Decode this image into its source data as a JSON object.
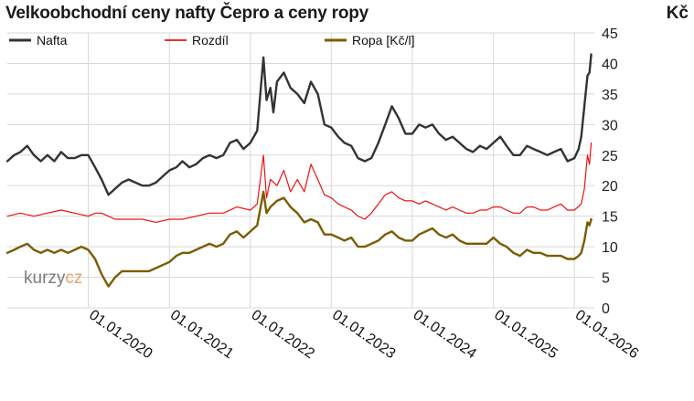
{
  "title": "Velkoobchodní ceny nafty Čepro a ceny ropy",
  "unit": "Kč",
  "watermark": {
    "main": "kurzy",
    "accent": "cz"
  },
  "colors": {
    "nafta": "#333333",
    "rozdil": "#ee1111",
    "ropa": "#7a5c00",
    "grid": "#d8d8d8",
    "background": "#ffffff"
  },
  "chart_data": {
    "type": "line",
    "title": "Velkoobchodní ceny nafty Čepro a ceny ropy",
    "ylabel": "Kč",
    "ylim": [
      0,
      45
    ],
    "yticks": [
      "0",
      "5",
      "10",
      "15",
      "20",
      "25",
      "30",
      "35",
      "40",
      "45"
    ],
    "xlim": [
      "2019-01-01",
      "2026-04-01"
    ],
    "xticks": [
      "01.01.2020",
      "01.01.2021",
      "01.01.2022",
      "01.01.2023",
      "01.01.2024",
      "01.01.2025",
      "01.01.2026"
    ],
    "grid": true,
    "legend": "top",
    "y_axis_side": "right",
    "series": [
      {
        "name": "Nafta",
        "points": [
          [
            "2019-01-01",
            24.0
          ],
          [
            "2019-02-01",
            25.0
          ],
          [
            "2019-03-01",
            25.5
          ],
          [
            "2019-04-01",
            26.5
          ],
          [
            "2019-05-01",
            25.0
          ],
          [
            "2019-06-01",
            24.0
          ],
          [
            "2019-07-01",
            25.0
          ],
          [
            "2019-08-01",
            24.0
          ],
          [
            "2019-09-01",
            25.5
          ],
          [
            "2019-10-01",
            24.5
          ],
          [
            "2019-11-01",
            24.5
          ],
          [
            "2019-12-01",
            25.0
          ],
          [
            "2020-01-01",
            25.0
          ],
          [
            "2020-02-01",
            23.0
          ],
          [
            "2020-03-01",
            21.0
          ],
          [
            "2020-04-01",
            18.5
          ],
          [
            "2020-05-01",
            19.5
          ],
          [
            "2020-06-01",
            20.5
          ],
          [
            "2020-07-01",
            21.0
          ],
          [
            "2020-08-01",
            20.5
          ],
          [
            "2020-09-01",
            20.0
          ],
          [
            "2020-10-01",
            20.0
          ],
          [
            "2020-11-01",
            20.5
          ],
          [
            "2020-12-01",
            21.5
          ],
          [
            "2021-01-01",
            22.5
          ],
          [
            "2021-02-01",
            23.0
          ],
          [
            "2021-03-01",
            24.0
          ],
          [
            "2021-04-01",
            23.0
          ],
          [
            "2021-05-01",
            23.5
          ],
          [
            "2021-06-01",
            24.5
          ],
          [
            "2021-07-01",
            25.0
          ],
          [
            "2021-08-01",
            24.5
          ],
          [
            "2021-09-01",
            25.0
          ],
          [
            "2021-10-01",
            27.0
          ],
          [
            "2021-11-01",
            27.5
          ],
          [
            "2021-12-01",
            26.0
          ],
          [
            "2022-01-01",
            27.0
          ],
          [
            "2022-02-01",
            29.0
          ],
          [
            "2022-03-01",
            41.0
          ],
          [
            "2022-03-15",
            34.0
          ],
          [
            "2022-04-01",
            36.0
          ],
          [
            "2022-04-15",
            32.0
          ],
          [
            "2022-05-01",
            37.0
          ],
          [
            "2022-06-01",
            38.5
          ],
          [
            "2022-07-01",
            36.0
          ],
          [
            "2022-08-01",
            35.0
          ],
          [
            "2022-09-01",
            33.5
          ],
          [
            "2022-10-01",
            37.0
          ],
          [
            "2022-11-01",
            35.0
          ],
          [
            "2022-12-01",
            30.0
          ],
          [
            "2023-01-01",
            29.5
          ],
          [
            "2023-02-01",
            28.0
          ],
          [
            "2023-03-01",
            27.0
          ],
          [
            "2023-04-01",
            26.5
          ],
          [
            "2023-05-01",
            24.5
          ],
          [
            "2023-06-01",
            24.0
          ],
          [
            "2023-07-01",
            24.5
          ],
          [
            "2023-08-01",
            27.0
          ],
          [
            "2023-09-01",
            30.0
          ],
          [
            "2023-10-01",
            33.0
          ],
          [
            "2023-11-01",
            31.0
          ],
          [
            "2023-12-01",
            28.5
          ],
          [
            "2024-01-01",
            28.5
          ],
          [
            "2024-02-01",
            30.0
          ],
          [
            "2024-03-01",
            29.5
          ],
          [
            "2024-04-01",
            30.0
          ],
          [
            "2024-05-01",
            28.5
          ],
          [
            "2024-06-01",
            27.5
          ],
          [
            "2024-07-01",
            28.0
          ],
          [
            "2024-08-01",
            27.0
          ],
          [
            "2024-09-01",
            26.0
          ],
          [
            "2024-10-01",
            25.5
          ],
          [
            "2024-11-01",
            26.5
          ],
          [
            "2024-12-01",
            26.0
          ],
          [
            "2025-01-01",
            27.0
          ],
          [
            "2025-02-01",
            28.0
          ],
          [
            "2025-03-01",
            26.5
          ],
          [
            "2025-04-01",
            25.0
          ],
          [
            "2025-05-01",
            25.0
          ],
          [
            "2025-06-01",
            26.5
          ],
          [
            "2025-07-01",
            26.0
          ],
          [
            "2025-08-01",
            25.5
          ],
          [
            "2025-09-01",
            25.0
          ],
          [
            "2025-10-01",
            25.5
          ],
          [
            "2025-11-01",
            26.0
          ],
          [
            "2025-12-01",
            24.0
          ],
          [
            "2026-01-01",
            24.5
          ],
          [
            "2026-01-20",
            26.0
          ],
          [
            "2026-02-01",
            28.0
          ],
          [
            "2026-02-15",
            33.0
          ],
          [
            "2026-03-01",
            38.0
          ],
          [
            "2026-03-10",
            38.5
          ],
          [
            "2026-03-18",
            41.5
          ]
        ]
      },
      {
        "name": "Rozdíl",
        "points": [
          [
            "2019-01-01",
            15.0
          ],
          [
            "2019-03-01",
            15.5
          ],
          [
            "2019-05-01",
            15.0
          ],
          [
            "2019-07-01",
            15.5
          ],
          [
            "2019-09-01",
            16.0
          ],
          [
            "2019-11-01",
            15.5
          ],
          [
            "2020-01-01",
            15.0
          ],
          [
            "2020-02-01",
            15.5
          ],
          [
            "2020-03-01",
            15.5
          ],
          [
            "2020-04-01",
            15.0
          ],
          [
            "2020-05-01",
            14.5
          ],
          [
            "2020-07-01",
            14.5
          ],
          [
            "2020-09-01",
            14.5
          ],
          [
            "2020-11-01",
            14.0
          ],
          [
            "2021-01-01",
            14.5
          ],
          [
            "2021-03-01",
            14.5
          ],
          [
            "2021-05-01",
            15.0
          ],
          [
            "2021-07-01",
            15.5
          ],
          [
            "2021-09-01",
            15.5
          ],
          [
            "2021-11-01",
            16.5
          ],
          [
            "2022-01-01",
            16.0
          ],
          [
            "2022-02-01",
            17.0
          ],
          [
            "2022-03-01",
            25.0
          ],
          [
            "2022-03-15",
            18.0
          ],
          [
            "2022-04-01",
            21.0
          ],
          [
            "2022-05-01",
            20.0
          ],
          [
            "2022-06-01",
            22.5
          ],
          [
            "2022-07-01",
            19.0
          ],
          [
            "2022-08-01",
            21.0
          ],
          [
            "2022-09-01",
            19.0
          ],
          [
            "2022-10-01",
            23.5
          ],
          [
            "2022-11-01",
            21.0
          ],
          [
            "2022-12-01",
            18.5
          ],
          [
            "2023-01-01",
            18.0
          ],
          [
            "2023-02-01",
            17.0
          ],
          [
            "2023-03-01",
            16.5
          ],
          [
            "2023-04-01",
            16.0
          ],
          [
            "2023-05-01",
            15.0
          ],
          [
            "2023-06-01",
            14.5
          ],
          [
            "2023-07-01",
            15.5
          ],
          [
            "2023-08-01",
            17.0
          ],
          [
            "2023-09-01",
            18.5
          ],
          [
            "2023-10-01",
            19.0
          ],
          [
            "2023-11-01",
            18.0
          ],
          [
            "2023-12-01",
            17.5
          ],
          [
            "2024-01-01",
            17.5
          ],
          [
            "2024-02-01",
            17.0
          ],
          [
            "2024-03-01",
            17.5
          ],
          [
            "2024-04-01",
            17.0
          ],
          [
            "2024-05-01",
            16.5
          ],
          [
            "2024-06-01",
            16.0
          ],
          [
            "2024-07-01",
            16.5
          ],
          [
            "2024-08-01",
            16.0
          ],
          [
            "2024-09-01",
            15.5
          ],
          [
            "2024-10-01",
            15.5
          ],
          [
            "2024-11-01",
            16.0
          ],
          [
            "2024-12-01",
            16.0
          ],
          [
            "2025-01-01",
            16.5
          ],
          [
            "2025-02-01",
            16.5
          ],
          [
            "2025-03-01",
            16.0
          ],
          [
            "2025-04-01",
            15.5
          ],
          [
            "2025-05-01",
            15.5
          ],
          [
            "2025-06-01",
            16.5
          ],
          [
            "2025-07-01",
            16.5
          ],
          [
            "2025-08-01",
            16.0
          ],
          [
            "2025-09-01",
            16.0
          ],
          [
            "2025-10-01",
            16.5
          ],
          [
            "2025-11-01",
            17.0
          ],
          [
            "2025-12-01",
            16.0
          ],
          [
            "2026-01-01",
            16.0
          ],
          [
            "2026-02-01",
            17.0
          ],
          [
            "2026-02-15",
            19.5
          ],
          [
            "2026-03-01",
            25.0
          ],
          [
            "2026-03-10",
            23.5
          ],
          [
            "2026-03-18",
            27.0
          ]
        ]
      },
      {
        "name": "Ropa [Kč/l]",
        "points": [
          [
            "2019-01-01",
            9.0
          ],
          [
            "2019-02-01",
            9.5
          ],
          [
            "2019-03-01",
            10.0
          ],
          [
            "2019-04-01",
            10.5
          ],
          [
            "2019-05-01",
            9.5
          ],
          [
            "2019-06-01",
            9.0
          ],
          [
            "2019-07-01",
            9.5
          ],
          [
            "2019-08-01",
            9.0
          ],
          [
            "2019-09-01",
            9.5
          ],
          [
            "2019-10-01",
            9.0
          ],
          [
            "2019-11-01",
            9.5
          ],
          [
            "2019-12-01",
            10.0
          ],
          [
            "2020-01-01",
            9.5
          ],
          [
            "2020-02-01",
            8.0
          ],
          [
            "2020-03-01",
            5.5
          ],
          [
            "2020-04-01",
            3.5
          ],
          [
            "2020-05-01",
            5.0
          ],
          [
            "2020-06-01",
            6.0
          ],
          [
            "2020-07-01",
            6.0
          ],
          [
            "2020-08-01",
            6.0
          ],
          [
            "2020-09-01",
            6.0
          ],
          [
            "2020-10-01",
            6.0
          ],
          [
            "2020-11-01",
            6.5
          ],
          [
            "2020-12-01",
            7.0
          ],
          [
            "2021-01-01",
            7.5
          ],
          [
            "2021-02-01",
            8.5
          ],
          [
            "2021-03-01",
            9.0
          ],
          [
            "2021-04-01",
            9.0
          ],
          [
            "2021-05-01",
            9.5
          ],
          [
            "2021-06-01",
            10.0
          ],
          [
            "2021-07-01",
            10.5
          ],
          [
            "2021-08-01",
            10.0
          ],
          [
            "2021-09-01",
            10.5
          ],
          [
            "2021-10-01",
            12.0
          ],
          [
            "2021-11-01",
            12.5
          ],
          [
            "2021-12-01",
            11.5
          ],
          [
            "2022-01-01",
            12.5
          ],
          [
            "2022-02-01",
            13.5
          ],
          [
            "2022-03-01",
            19.0
          ],
          [
            "2022-03-15",
            15.5
          ],
          [
            "2022-04-01",
            16.5
          ],
          [
            "2022-05-01",
            17.5
          ],
          [
            "2022-06-01",
            18.0
          ],
          [
            "2022-07-01",
            16.5
          ],
          [
            "2022-08-01",
            15.5
          ],
          [
            "2022-09-01",
            14.0
          ],
          [
            "2022-10-01",
            14.5
          ],
          [
            "2022-11-01",
            14.0
          ],
          [
            "2022-12-01",
            12.0
          ],
          [
            "2023-01-01",
            12.0
          ],
          [
            "2023-02-01",
            11.5
          ],
          [
            "2023-03-01",
            11.0
          ],
          [
            "2023-04-01",
            11.5
          ],
          [
            "2023-05-01",
            10.0
          ],
          [
            "2023-06-01",
            10.0
          ],
          [
            "2023-07-01",
            10.5
          ],
          [
            "2023-08-01",
            11.0
          ],
          [
            "2023-09-01",
            12.0
          ],
          [
            "2023-10-01",
            12.5
          ],
          [
            "2023-11-01",
            11.5
          ],
          [
            "2023-12-01",
            11.0
          ],
          [
            "2024-01-01",
            11.0
          ],
          [
            "2024-02-01",
            12.0
          ],
          [
            "2024-03-01",
            12.5
          ],
          [
            "2024-04-01",
            13.0
          ],
          [
            "2024-05-01",
            12.0
          ],
          [
            "2024-06-01",
            11.5
          ],
          [
            "2024-07-01",
            12.0
          ],
          [
            "2024-08-01",
            11.0
          ],
          [
            "2024-09-01",
            10.5
          ],
          [
            "2024-10-01",
            10.5
          ],
          [
            "2024-11-01",
            10.5
          ],
          [
            "2024-12-01",
            10.5
          ],
          [
            "2025-01-01",
            11.5
          ],
          [
            "2025-02-01",
            10.5
          ],
          [
            "2025-03-01",
            10.0
          ],
          [
            "2025-04-01",
            9.0
          ],
          [
            "2025-05-01",
            8.5
          ],
          [
            "2025-06-01",
            9.5
          ],
          [
            "2025-07-01",
            9.0
          ],
          [
            "2025-08-01",
            9.0
          ],
          [
            "2025-09-01",
            8.5
          ],
          [
            "2025-10-01",
            8.5
          ],
          [
            "2025-11-01",
            8.5
          ],
          [
            "2025-12-01",
            8.0
          ],
          [
            "2026-01-01",
            8.0
          ],
          [
            "2026-01-20",
            8.5
          ],
          [
            "2026-02-01",
            9.0
          ],
          [
            "2026-02-15",
            11.0
          ],
          [
            "2026-03-01",
            14.0
          ],
          [
            "2026-03-10",
            13.5
          ],
          [
            "2026-03-18",
            14.5
          ]
        ]
      }
    ]
  }
}
